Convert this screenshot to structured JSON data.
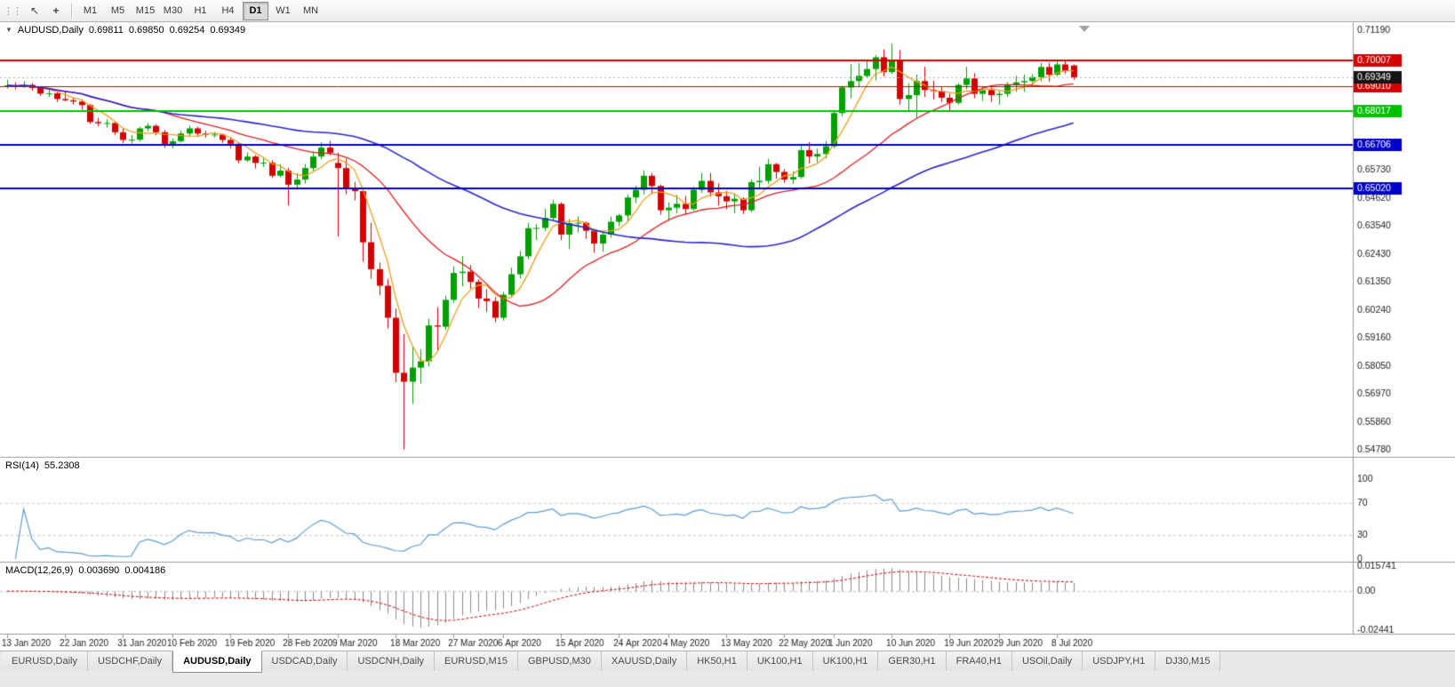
{
  "toolbar": {
    "icons": {
      "drag_handle": "⋮⋮",
      "pointer": "↖",
      "crosshair": "+"
    },
    "periods": [
      "M1",
      "M5",
      "M15",
      "M30",
      "H1",
      "H4",
      "D1",
      "W1",
      "MN"
    ],
    "active_period": "D1"
  },
  "symbol_info": {
    "symbol": "AUDUSD,Daily",
    "open": "0.69811",
    "high": "0.69850",
    "low": "0.69254",
    "close": "0.69349"
  },
  "indicators": {
    "rsi": {
      "name": "RSI(14)",
      "value": "55.2308"
    },
    "macd": {
      "name": "MACD(12,26,9)",
      "value1": "0.003690",
      "value2": "0.004186"
    }
  },
  "tabs": [
    "EURUSD,Daily",
    "USDCHF,Daily",
    "AUDUSD,Daily",
    "USDCAD,Daily",
    "USDCNH,Daily",
    "EURUSD,M15",
    "GBPUSD,M30",
    "XAUUSD,Daily",
    "HK50,H1",
    "UK100,H1",
    "UK100,H1",
    "GER30,H1",
    "FRA40,H1",
    "USOil,Daily",
    "USDJPY,H1",
    "DJ30,M15"
  ],
  "active_tab_index": 2,
  "chart_data": {
    "type": "candlestick",
    "symbol": "AUDUSD",
    "timeframe": "Daily",
    "price_range": [
      0.5455,
      0.715
    ],
    "y_axis_labels": [
      "0.71190",
      "0.65730",
      "0.64620",
      "0.63540",
      "0.62430",
      "0.61350",
      "0.60240",
      "0.59160",
      "0.58050",
      "0.56970",
      "0.55860",
      "0.54780"
    ],
    "x_labels": [
      {
        "i": 0,
        "label": "13 Jan 2020"
      },
      {
        "i": 7,
        "label": "22 Jan 2020"
      },
      {
        "i": 14,
        "label": "31 Jan 2020"
      },
      {
        "i": 20,
        "label": "10 Feb 2020"
      },
      {
        "i": 27,
        "label": "19 Feb 2020"
      },
      {
        "i": 34,
        "label": "28 Feb 2020"
      },
      {
        "i": 40,
        "label": "9 Mar 2020"
      },
      {
        "i": 47,
        "label": "18 Mar 2020"
      },
      {
        "i": 54,
        "label": "27 Mar 2020"
      },
      {
        "i": 60,
        "label": "6 Apr 2020"
      },
      {
        "i": 67,
        "label": "15 Apr 2020"
      },
      {
        "i": 74,
        "label": "24 Apr 2020"
      },
      {
        "i": 80,
        "label": "4 May 2020"
      },
      {
        "i": 87,
        "label": "13 May 2020"
      },
      {
        "i": 94,
        "label": "22 May 2020"
      },
      {
        "i": 100,
        "label": "1 Jun 2020"
      },
      {
        "i": 107,
        "label": "10 Jun 2020"
      },
      {
        "i": 114,
        "label": "19 Jun 2020"
      },
      {
        "i": 120,
        "label": "29 Jun 2020"
      },
      {
        "i": 127,
        "label": "8 Jul 2020"
      }
    ],
    "hlines": [
      {
        "price": 0.70007,
        "label": "0.70007",
        "color": "#d40000",
        "width": 2
      },
      {
        "price": 0.6901,
        "label": "0.69010",
        "color": "#d40000",
        "width": 1
      },
      {
        "price": 0.68017,
        "label": "0.68017",
        "color": "#00c000",
        "width": 2
      },
      {
        "price": 0.66706,
        "label": "0.66706",
        "color": "#0000c8",
        "width": 2
      },
      {
        "price": 0.6502,
        "label": "0.65020",
        "color": "#0000c8",
        "width": 2
      }
    ],
    "current_price": {
      "price": 0.69349,
      "label": "0.69349",
      "bg": "#141414"
    },
    "moving_averages": [
      {
        "period": 5,
        "type": "sma",
        "color": "#eba01e"
      },
      {
        "period": 20,
        "type": "sma",
        "color": "#e02020"
      },
      {
        "period": 50,
        "type": "sma",
        "color": "#2828c8"
      }
    ],
    "rsi": {
      "period": 14,
      "levels": [
        30,
        70
      ],
      "labels": [
        "100",
        "70",
        "30",
        "0"
      ],
      "color": "#5e9dd3",
      "last": 55.2308
    },
    "macd": {
      "fast": 12,
      "slow": 26,
      "signal": 9,
      "range": [
        -0.02441,
        0.015741
      ],
      "axis_labels": [
        "0.015741",
        "0.00",
        "-0.02441"
      ],
      "hist_color": "#8a8a8a",
      "signal_color": "#d00000",
      "last_macd": 0.00369,
      "last_signal": 0.004186
    },
    "colors": {
      "bull": "#00a000",
      "bear": "#d40000",
      "bg": "#ffffff",
      "axis_text": "#1a1a1a"
    },
    "candles": [
      [
        0.69,
        0.6925,
        0.689,
        0.6903
      ],
      [
        0.6903,
        0.6915,
        0.6888,
        0.69
      ],
      [
        0.69,
        0.692,
        0.6893,
        0.6905
      ],
      [
        0.6905,
        0.6912,
        0.6882,
        0.6893
      ],
      [
        0.6893,
        0.69,
        0.6862,
        0.6871
      ],
      [
        0.6871,
        0.6886,
        0.6858,
        0.6872
      ],
      [
        0.6872,
        0.6879,
        0.6838,
        0.685
      ],
      [
        0.685,
        0.6881,
        0.6841,
        0.6845
      ],
      [
        0.6845,
        0.6856,
        0.6828,
        0.684
      ],
      [
        0.684,
        0.6849,
        0.6808,
        0.6826
      ],
      [
        0.6826,
        0.6831,
        0.6752,
        0.676
      ],
      [
        0.676,
        0.6776,
        0.6743,
        0.6755
      ],
      [
        0.6755,
        0.6771,
        0.6738,
        0.6756
      ],
      [
        0.6756,
        0.6761,
        0.6708,
        0.672
      ],
      [
        0.672,
        0.6734,
        0.6678,
        0.669
      ],
      [
        0.669,
        0.6709,
        0.6676,
        0.6691
      ],
      [
        0.6691,
        0.6741,
        0.6684,
        0.6735
      ],
      [
        0.6735,
        0.6756,
        0.6724,
        0.6745
      ],
      [
        0.6745,
        0.6751,
        0.6708,
        0.672
      ],
      [
        0.672,
        0.6729,
        0.666,
        0.667
      ],
      [
        0.667,
        0.6696,
        0.6658,
        0.6685
      ],
      [
        0.6685,
        0.6726,
        0.6679,
        0.6715
      ],
      [
        0.6715,
        0.6746,
        0.6704,
        0.6735
      ],
      [
        0.6735,
        0.6741,
        0.6703,
        0.6715
      ],
      [
        0.6715,
        0.6726,
        0.6699,
        0.671
      ],
      [
        0.671,
        0.6721,
        0.6699,
        0.6711
      ],
      [
        0.6711,
        0.6716,
        0.6678,
        0.669
      ],
      [
        0.669,
        0.6701,
        0.6658,
        0.6675
      ],
      [
        0.6675,
        0.6681,
        0.6598,
        0.661
      ],
      [
        0.661,
        0.6641,
        0.6604,
        0.6625
      ],
      [
        0.6625,
        0.6631,
        0.6578,
        0.66
      ],
      [
        0.66,
        0.6621,
        0.6584,
        0.6601
      ],
      [
        0.6601,
        0.6611,
        0.6541,
        0.655
      ],
      [
        0.655,
        0.6596,
        0.6544,
        0.657
      ],
      [
        0.657,
        0.6581,
        0.6434,
        0.6515
      ],
      [
        0.6515,
        0.6561,
        0.6504,
        0.6535
      ],
      [
        0.6535,
        0.6596,
        0.6519,
        0.658
      ],
      [
        0.658,
        0.6646,
        0.6569,
        0.6625
      ],
      [
        0.6625,
        0.6681,
        0.6614,
        0.666
      ],
      [
        0.666,
        0.6686,
        0.6629,
        0.664
      ],
      [
        0.66,
        0.6641,
        0.6313,
        0.658
      ],
      [
        0.658,
        0.6616,
        0.6478,
        0.65
      ],
      [
        0.65,
        0.6526,
        0.6454,
        0.649
      ],
      [
        0.649,
        0.6501,
        0.6214,
        0.629
      ],
      [
        0.629,
        0.6366,
        0.6148,
        0.6185
      ],
      [
        0.6185,
        0.6211,
        0.6083,
        0.612
      ],
      [
        0.612,
        0.6146,
        0.5953,
        0.5995
      ],
      [
        0.5995,
        0.6031,
        0.5743,
        0.578
      ],
      [
        0.578,
        0.5931,
        0.548,
        0.5745
      ],
      [
        0.5745,
        0.5886,
        0.5658,
        0.58
      ],
      [
        0.58,
        0.5871,
        0.5738,
        0.5825
      ],
      [
        0.5825,
        0.5991,
        0.5804,
        0.5965
      ],
      [
        0.5965,
        0.6036,
        0.5868,
        0.596
      ],
      [
        0.596,
        0.6081,
        0.5948,
        0.6065
      ],
      [
        0.6065,
        0.6196,
        0.6053,
        0.617
      ],
      [
        0.617,
        0.6236,
        0.6118,
        0.6175
      ],
      [
        0.6175,
        0.6201,
        0.6108,
        0.6135
      ],
      [
        0.6135,
        0.6146,
        0.6033,
        0.607
      ],
      [
        0.607,
        0.6106,
        0.6018,
        0.606
      ],
      [
        0.606,
        0.6076,
        0.5978,
        0.5995
      ],
      [
        0.5995,
        0.6096,
        0.5983,
        0.6085
      ],
      [
        0.6085,
        0.6191,
        0.6078,
        0.6165
      ],
      [
        0.6165,
        0.6256,
        0.6148,
        0.6235
      ],
      [
        0.6235,
        0.6366,
        0.6223,
        0.6345
      ],
      [
        0.6345,
        0.6361,
        0.6298,
        0.6346
      ],
      [
        0.6346,
        0.6421,
        0.6333,
        0.6385
      ],
      [
        0.6385,
        0.6456,
        0.6373,
        0.644
      ],
      [
        0.644,
        0.6446,
        0.6298,
        0.632
      ],
      [
        0.632,
        0.6381,
        0.6263,
        0.6365
      ],
      [
        0.6365,
        0.6391,
        0.6328,
        0.6366
      ],
      [
        0.6366,
        0.6371,
        0.6303,
        0.6335
      ],
      [
        0.6335,
        0.6341,
        0.6248,
        0.6285
      ],
      [
        0.6285,
        0.6331,
        0.6253,
        0.632
      ],
      [
        0.632,
        0.6391,
        0.6308,
        0.637
      ],
      [
        0.637,
        0.6401,
        0.6353,
        0.6395
      ],
      [
        0.6395,
        0.6476,
        0.6368,
        0.6465
      ],
      [
        0.6465,
        0.6511,
        0.6443,
        0.6495
      ],
      [
        0.6495,
        0.6571,
        0.6478,
        0.655
      ],
      [
        0.655,
        0.6561,
        0.6478,
        0.651
      ],
      [
        0.651,
        0.6516,
        0.6398,
        0.6415
      ],
      [
        0.6415,
        0.6446,
        0.6373,
        0.6425
      ],
      [
        0.6425,
        0.6476,
        0.6403,
        0.644
      ],
      [
        0.644,
        0.6471,
        0.6398,
        0.642
      ],
      [
        0.642,
        0.6506,
        0.6413,
        0.6495
      ],
      [
        0.6495,
        0.6561,
        0.6483,
        0.653
      ],
      [
        0.653,
        0.6561,
        0.6468,
        0.6485
      ],
      [
        0.6485,
        0.6521,
        0.6433,
        0.647
      ],
      [
        0.647,
        0.6491,
        0.6418,
        0.645
      ],
      [
        0.645,
        0.6476,
        0.6403,
        0.646
      ],
      [
        0.646,
        0.6466,
        0.64,
        0.6415
      ],
      [
        0.6415,
        0.6536,
        0.6408,
        0.6525
      ],
      [
        0.6525,
        0.6586,
        0.6503,
        0.653
      ],
      [
        0.653,
        0.6616,
        0.6518,
        0.6595
      ],
      [
        0.6595,
        0.6601,
        0.6538,
        0.6565
      ],
      [
        0.6565,
        0.6576,
        0.6523,
        0.6535
      ],
      [
        0.6535,
        0.6566,
        0.6518,
        0.6545
      ],
      [
        0.6545,
        0.6666,
        0.6538,
        0.665
      ],
      [
        0.665,
        0.6681,
        0.6598,
        0.6625
      ],
      [
        0.6625,
        0.6656,
        0.6603,
        0.6635
      ],
      [
        0.6635,
        0.6686,
        0.6618,
        0.6665
      ],
      [
        0.6665,
        0.6806,
        0.6658,
        0.6795
      ],
      [
        0.6795,
        0.6901,
        0.6783,
        0.6895
      ],
      [
        0.6895,
        0.6986,
        0.6853,
        0.692
      ],
      [
        0.692,
        0.6991,
        0.6898,
        0.694
      ],
      [
        0.694,
        0.7001,
        0.6933,
        0.6967
      ],
      [
        0.6967,
        0.7021,
        0.6923,
        0.7013
      ],
      [
        0.7013,
        0.7044,
        0.6938,
        0.6955
      ],
      [
        0.6955,
        0.7066,
        0.6948,
        0.7
      ],
      [
        0.7,
        0.7041,
        0.6828,
        0.685
      ],
      [
        0.685,
        0.6911,
        0.6798,
        0.6865
      ],
      [
        0.6865,
        0.6946,
        0.6776,
        0.692
      ],
      [
        0.692,
        0.6976,
        0.6858,
        0.6885
      ],
      [
        0.6885,
        0.6921,
        0.6848,
        0.688
      ],
      [
        0.688,
        0.6896,
        0.6838,
        0.6855
      ],
      [
        0.6855,
        0.6871,
        0.6803,
        0.6835
      ],
      [
        0.6835,
        0.6911,
        0.6828,
        0.6905
      ],
      [
        0.6905,
        0.6976,
        0.6888,
        0.693
      ],
      [
        0.693,
        0.6951,
        0.6853,
        0.687
      ],
      [
        0.687,
        0.6896,
        0.6843,
        0.6885
      ],
      [
        0.6885,
        0.6901,
        0.6838,
        0.6865
      ],
      [
        0.6865,
        0.6881,
        0.6828,
        0.687
      ],
      [
        0.687,
        0.6916,
        0.6858,
        0.6905
      ],
      [
        0.6905,
        0.6941,
        0.6878,
        0.6915
      ],
      [
        0.6915,
        0.6946,
        0.6878,
        0.692
      ],
      [
        0.692,
        0.6946,
        0.6898,
        0.6935
      ],
      [
        0.6935,
        0.6991,
        0.6918,
        0.6975
      ],
      [
        0.6975,
        0.6991,
        0.6918,
        0.6945
      ],
      [
        0.6945,
        0.7001,
        0.6938,
        0.6985
      ],
      [
        0.6985,
        0.6999,
        0.6948,
        0.696
      ],
      [
        0.6981,
        0.6985,
        0.6925,
        0.6935
      ]
    ]
  }
}
